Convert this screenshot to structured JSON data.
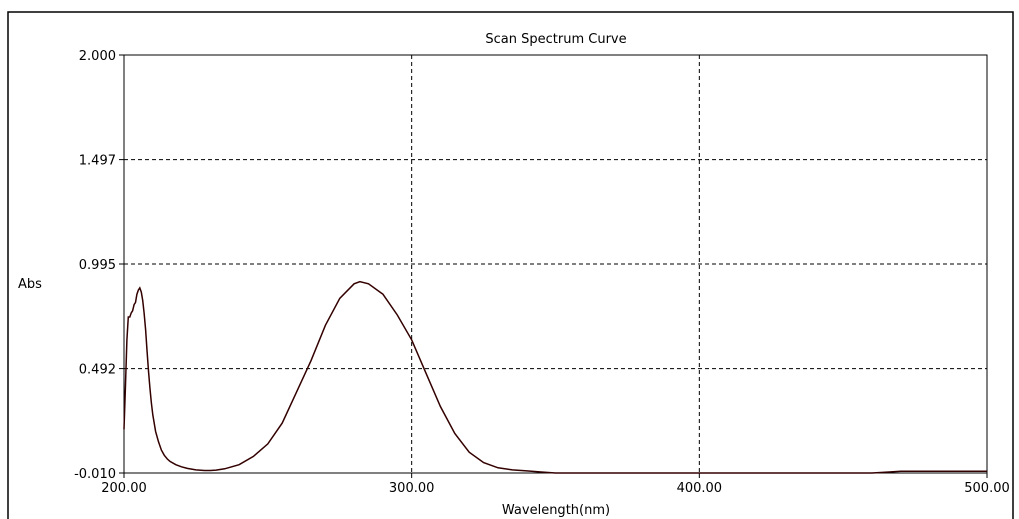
{
  "chart_data": {
    "type": "line",
    "title": "Scan Spectrum Curve",
    "xlabel": "Wavelength(nm)",
    "ylabel": "Abs",
    "xlim": [
      200,
      500
    ],
    "ylim": [
      -0.01,
      2.0
    ],
    "x_ticks": [
      "200.00",
      "300.00",
      "400.00",
      "500.00"
    ],
    "y_ticks": [
      "-0.010",
      "0.492",
      "0.995",
      "1.497",
      "2.000"
    ],
    "grid": true,
    "colors": {
      "line": "#330000",
      "grid": "#000000",
      "axis": "#000000",
      "frame": "#000000"
    },
    "series": [
      {
        "x": [
          200.0,
          200.5,
          201.0,
          201.5,
          202.0,
          202.5,
          203.0,
          203.5,
          204.0,
          204.5,
          205.0,
          205.5,
          206.0,
          206.5,
          207.0,
          207.5,
          208.0,
          208.5,
          209.0,
          209.5,
          210.0,
          211.0,
          212.0,
          213.0,
          214.0,
          215.0,
          216.0,
          218.0,
          220.0,
          222.0,
          225.0,
          228.0,
          230.0,
          232.0,
          235.0,
          240.0,
          245.0,
          250.0,
          255.0,
          260.0,
          265.0,
          270.0,
          275.0,
          280.0,
          282.0,
          285.0,
          290.0,
          295.0,
          300.0,
          305.0,
          310.0,
          315.0,
          320.0,
          325.0,
          330.0,
          335.0,
          340.0,
          345.0,
          350.0,
          360.0,
          380.0,
          400.0,
          420.0,
          440.0,
          460.0,
          466.0,
          470.0,
          480.0,
          490.0,
          500.0
        ],
        "values": [
          0.2,
          0.4,
          0.63,
          0.74,
          0.74,
          0.76,
          0.77,
          0.8,
          0.81,
          0.85,
          0.87,
          0.88,
          0.86,
          0.82,
          0.76,
          0.68,
          0.58,
          0.48,
          0.4,
          0.33,
          0.27,
          0.19,
          0.14,
          0.1,
          0.075,
          0.058,
          0.046,
          0.03,
          0.02,
          0.012,
          0.005,
          0.002,
          0.002,
          0.004,
          0.01,
          0.03,
          0.07,
          0.13,
          0.23,
          0.38,
          0.53,
          0.7,
          0.83,
          0.9,
          0.91,
          0.9,
          0.85,
          0.75,
          0.63,
          0.47,
          0.31,
          0.18,
          0.09,
          0.04,
          0.015,
          0.005,
          0.0,
          -0.005,
          -0.01,
          -0.01,
          -0.01,
          -0.01,
          -0.01,
          -0.01,
          -0.01,
          -0.005,
          -0.002,
          -0.002,
          -0.002,
          -0.002
        ]
      }
    ]
  }
}
